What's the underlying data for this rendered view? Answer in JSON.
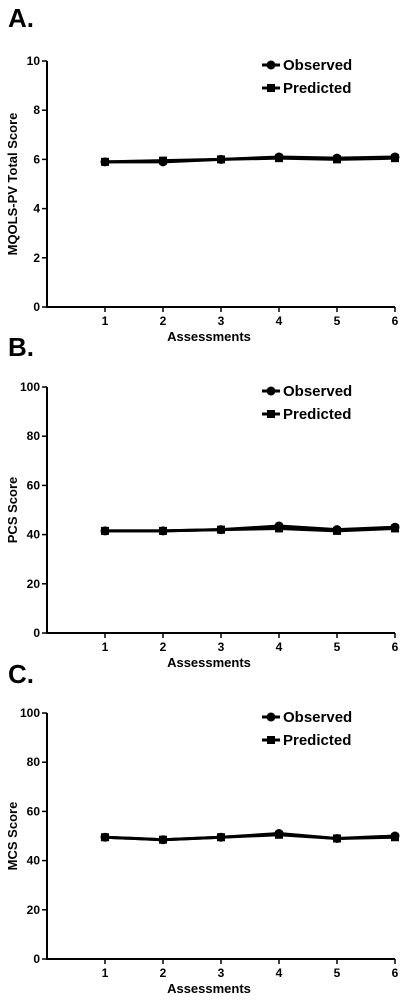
{
  "chart_data": [
    {
      "panel_label": "A.",
      "type": "line",
      "xlabel": "Assessments",
      "ylabel": "MQOLS-PV Total  Score",
      "x": [
        1,
        2,
        3,
        4,
        5,
        6
      ],
      "x_ticks": [
        "1",
        "2",
        "3",
        "4",
        "5",
        "6"
      ],
      "xlim": [
        0,
        6
      ],
      "ylim": [
        0,
        10
      ],
      "y_ticks": [
        "0",
        "2",
        "4",
        "6",
        "8",
        "10"
      ],
      "grid": false,
      "legend_position": "top-right",
      "series": [
        {
          "name": "Observed",
          "marker": "circle",
          "values": [
            5.9,
            5.9,
            6.0,
            6.1,
            6.05,
            6.1
          ]
        },
        {
          "name": "Predicted",
          "marker": "square",
          "values": [
            5.9,
            5.95,
            6.0,
            6.05,
            6.0,
            6.05
          ]
        }
      ]
    },
    {
      "panel_label": "B.",
      "type": "line",
      "xlabel": "Assessments",
      "ylabel": "PCS Score",
      "x": [
        1,
        2,
        3,
        4,
        5,
        6
      ],
      "x_ticks": [
        "1",
        "2",
        "3",
        "4",
        "5",
        "6"
      ],
      "xlim": [
        0,
        6
      ],
      "ylim": [
        0,
        100
      ],
      "y_ticks": [
        "0",
        "20",
        "40",
        "60",
        "80",
        "100"
      ],
      "grid": false,
      "legend_position": "top-right",
      "series": [
        {
          "name": "Observed",
          "marker": "circle",
          "values": [
            41.5,
            41.5,
            42.0,
            43.5,
            42.0,
            43.0
          ]
        },
        {
          "name": "Predicted",
          "marker": "square",
          "values": [
            41.5,
            41.5,
            42.0,
            42.5,
            41.5,
            42.5
          ]
        }
      ]
    },
    {
      "panel_label": "C.",
      "type": "line",
      "xlabel": "Assessments",
      "ylabel": "MCS Score",
      "x": [
        1,
        2,
        3,
        4,
        5,
        6
      ],
      "x_ticks": [
        "1",
        "2",
        "3",
        "4",
        "5",
        "6"
      ],
      "xlim": [
        0,
        6
      ],
      "ylim": [
        0,
        100
      ],
      "y_ticks": [
        "0",
        "20",
        "40",
        "60",
        "80",
        "100"
      ],
      "grid": false,
      "legend_position": "top-right",
      "series": [
        {
          "name": "Observed",
          "marker": "circle",
          "values": [
            49.5,
            48.5,
            49.5,
            51.0,
            49.0,
            50.0
          ]
        },
        {
          "name": "Predicted",
          "marker": "square",
          "values": [
            49.5,
            48.5,
            49.5,
            50.5,
            49.0,
            49.5
          ]
        }
      ]
    }
  ]
}
